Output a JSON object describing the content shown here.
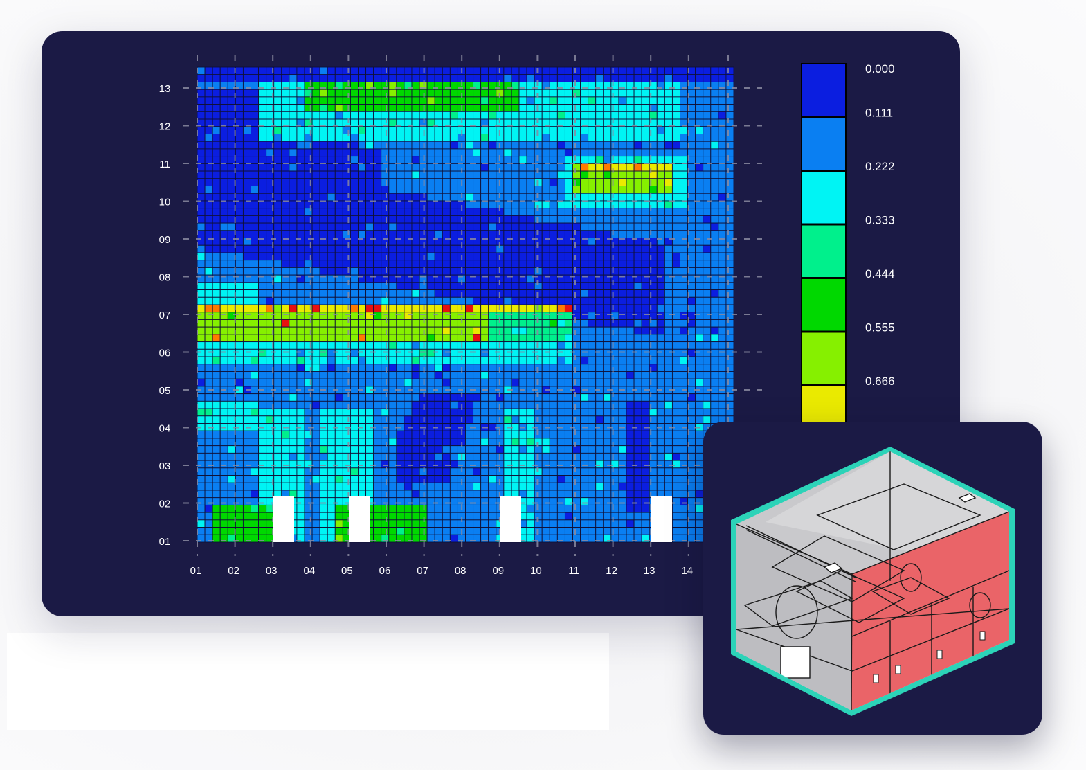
{
  "chart_data": {
    "type": "heatmap",
    "x_ticks": [
      "01",
      "02",
      "03",
      "04",
      "05",
      "06",
      "07",
      "08",
      "09",
      "10",
      "11",
      "12",
      "13",
      "14"
    ],
    "y_ticks": [
      "01",
      "02",
      "03",
      "04",
      "05",
      "06",
      "07",
      "08",
      "09",
      "10",
      "11",
      "12",
      "13"
    ],
    "colorbar": {
      "labels": [
        "0.000",
        "0.111",
        "0.222",
        "0.333",
        "0.444",
        "0.555",
        "0.666"
      ],
      "colors": [
        "#0b1ee0",
        "#0a7ff2",
        "#00f4f4",
        "#00f08c",
        "#00d800",
        "#86f000",
        "#eaea00"
      ]
    },
    "grid": true
  },
  "inset": {
    "icon": "3d-building-model-icon",
    "frame_color": "#2cd3b8",
    "highlight_color": "#f05a60"
  }
}
